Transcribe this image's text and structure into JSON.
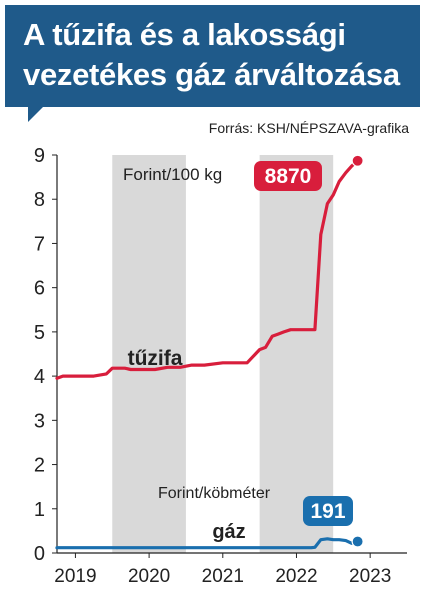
{
  "title_lines": [
    "A tűzifa és a lakossági",
    "vezetékes gáz árváltozása"
  ],
  "source": "Forrás: KSH/NÉPSZAVA-grafika",
  "colors": {
    "brand": "#1f5a8a",
    "series_fuelwood": "#d81e3c",
    "series_gas": "#1a6fae",
    "band": "#d9d9d9"
  },
  "chart_data": {
    "type": "line",
    "title": "A tűzifa és a lakossági vezetékes gáz árváltozása",
    "xlabel": "",
    "ylabel": "",
    "ylim": [
      0,
      9
    ],
    "xlim": [
      2018.75,
      2023.5
    ],
    "yticks": [
      0,
      1,
      2,
      3,
      4,
      5,
      6,
      7,
      8,
      9
    ],
    "xticks": [
      2019,
      2020,
      2021,
      2022,
      2023
    ],
    "grid": false,
    "series": [
      {
        "name": "tűzifa",
        "unit_label": "Forint/100 kg",
        "end_label": "8870",
        "color": "#d81e3c",
        "x": [
          2018.75,
          2018.83,
          2019.0,
          2019.25,
          2019.42,
          2019.5,
          2019.67,
          2019.75,
          2020.0,
          2020.08,
          2020.25,
          2020.42,
          2020.58,
          2020.75,
          2021.0,
          2021.17,
          2021.33,
          2021.5,
          2021.58,
          2021.67,
          2021.75,
          2021.83,
          2021.92,
          2022.0,
          2022.08,
          2022.25,
          2022.33,
          2022.42,
          2022.5,
          2022.58,
          2022.67,
          2022.75,
          2022.83
        ],
        "y": [
          3.95,
          4.0,
          4.0,
          4.0,
          4.05,
          4.18,
          4.18,
          4.15,
          4.15,
          4.15,
          4.2,
          4.2,
          4.25,
          4.25,
          4.3,
          4.3,
          4.3,
          4.6,
          4.65,
          4.9,
          4.95,
          5.0,
          5.05,
          5.05,
          5.05,
          5.05,
          7.2,
          7.9,
          8.1,
          8.4,
          8.6,
          8.75,
          8.87
        ]
      },
      {
        "name": "gáz",
        "unit_label": "Forint/köbméter",
        "end_label": "191",
        "color": "#1a6fae",
        "x": [
          2018.75,
          2019.0,
          2019.5,
          2020.0,
          2020.5,
          2021.0,
          2021.5,
          2022.0,
          2022.2,
          2022.25,
          2022.33,
          2022.42,
          2022.5,
          2022.58,
          2022.67,
          2022.75,
          2022.83
        ],
        "y": [
          0.12,
          0.12,
          0.12,
          0.12,
          0.12,
          0.12,
          0.12,
          0.12,
          0.12,
          0.13,
          0.3,
          0.32,
          0.3,
          0.3,
          0.28,
          0.22,
          0.26
        ]
      }
    ]
  }
}
